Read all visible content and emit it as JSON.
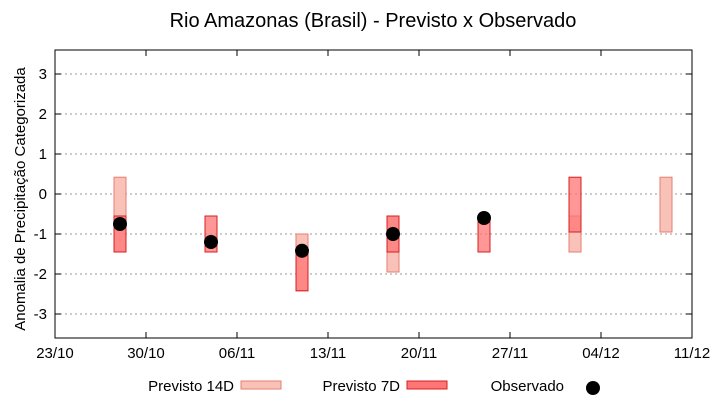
{
  "chart_data": {
    "type": "range-bar",
    "title": "Rio Amazonas (Brasil) - Previsto x Observado",
    "xlabel": "",
    "ylabel": "Anomalia de Precipitação Categorizada",
    "ylim": [
      -3.6,
      3.6
    ],
    "yticks": [
      -3,
      -2,
      -1,
      0,
      1,
      2,
      3
    ],
    "x_dates": [
      "2023-10-23",
      "2023-10-30",
      "2023-11-06",
      "2023-11-13",
      "2023-11-20",
      "2023-11-27",
      "2023-12-04",
      "2023-12-11"
    ],
    "x_tick_labels": [
      "23/10",
      "30/10",
      "06/11",
      "13/11",
      "20/11",
      "27/11",
      "04/12",
      "11/12"
    ],
    "grid": true,
    "series": [
      {
        "name": "Previsto 14D",
        "color": "#f9c2b8",
        "stroke": "#e87d70",
        "points": [
          {
            "date": "2023-10-28",
            "low": -1.45,
            "high": 0.42
          },
          {
            "date": "2023-11-11",
            "low": -2.42,
            "high": -1.0
          },
          {
            "date": "2023-11-18",
            "low": -1.95,
            "high": -0.55
          },
          {
            "date": "2023-12-02",
            "low": -1.45,
            "high": -0.55
          },
          {
            "date": "2023-12-09",
            "low": -0.95,
            "high": 0.42
          }
        ]
      },
      {
        "name": "Previsto 7D",
        "color": "#ff7474",
        "stroke": "#d42020",
        "points": [
          {
            "date": "2023-10-28",
            "low": -1.45,
            "high": -0.55
          },
          {
            "date": "2023-11-04",
            "low": -1.45,
            "high": -0.55
          },
          {
            "date": "2023-11-11",
            "low": -2.42,
            "high": -1.45
          },
          {
            "date": "2023-11-18",
            "low": -1.45,
            "high": -0.55
          },
          {
            "date": "2023-11-25",
            "low": -1.45,
            "high": -0.55
          },
          {
            "date": "2023-12-02",
            "low": -0.95,
            "high": 0.42
          }
        ]
      },
      {
        "name": "Observado",
        "color": "#000000",
        "points": [
          {
            "date": "2023-10-28",
            "value": -0.75
          },
          {
            "date": "2023-11-04",
            "value": -1.2
          },
          {
            "date": "2023-11-11",
            "value": -1.42
          },
          {
            "date": "2023-11-18",
            "value": -1.0
          },
          {
            "date": "2023-11-25",
            "value": -0.6
          }
        ]
      }
    ],
    "legend": {
      "position": "bottom"
    }
  }
}
